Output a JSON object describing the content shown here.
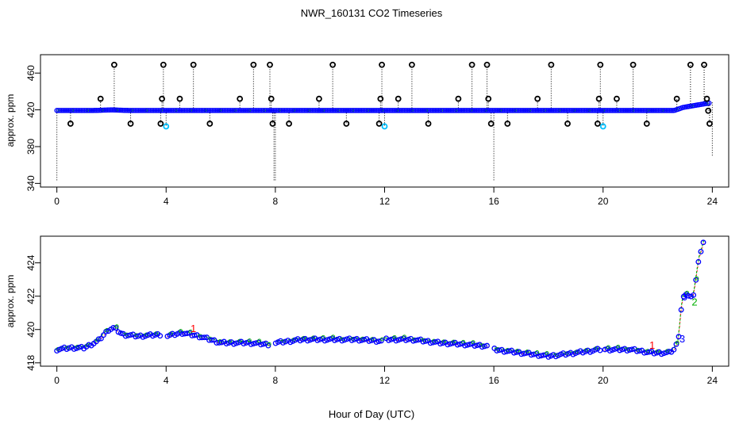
{
  "title": "NWR_160131  CO2 Timeseries",
  "xlabel": "Hour of Day (UTC)",
  "colors": {
    "circle": "#000000",
    "baseline": "#0000ff",
    "cyan": "#00bfff",
    "green": "#00b000",
    "red": "#ff0000",
    "drop": "#000000"
  },
  "chart_data": [
    {
      "type": "scatter",
      "title": "NWR_160131  CO2 Timeseries",
      "ylabel": "approx. ppm",
      "xlim": [
        -0.6,
        24.6
      ],
      "ylim": [
        336,
        480
      ],
      "xticks": [
        0,
        4,
        8,
        12,
        16,
        20,
        24
      ],
      "xtick_labels": [
        "0",
        "4",
        "8",
        "12",
        "16",
        "20",
        "24"
      ],
      "yticks": [
        340,
        380,
        420,
        460
      ],
      "ytick_labels": [
        "340",
        "380",
        "420",
        "460"
      ],
      "baseline_description": "near-continuous series at ~419 ppm, rising to ~426 ppm near hour 23.5",
      "spikes": [
        {
          "x": 0.5,
          "y": 405
        },
        {
          "x": 1.6,
          "y": 432
        },
        {
          "x": 2.1,
          "y": 469
        },
        {
          "x": 2.7,
          "y": 405
        },
        {
          "x": 3.8,
          "y": 405
        },
        {
          "x": 3.85,
          "y": 432
        },
        {
          "x": 3.9,
          "y": 469
        },
        {
          "x": 4.0,
          "y": 402
        },
        {
          "x": 4.5,
          "y": 432
        },
        {
          "x": 5.0,
          "y": 469
        },
        {
          "x": 5.6,
          "y": 405
        },
        {
          "x": 6.7,
          "y": 432
        },
        {
          "x": 7.2,
          "y": 469
        },
        {
          "x": 7.8,
          "y": 469
        },
        {
          "x": 7.85,
          "y": 432
        },
        {
          "x": 7.9,
          "y": 405
        },
        {
          "x": 8.5,
          "y": 405
        },
        {
          "x": 9.6,
          "y": 432
        },
        {
          "x": 10.1,
          "y": 469
        },
        {
          "x": 10.6,
          "y": 405
        },
        {
          "x": 11.8,
          "y": 405
        },
        {
          "x": 11.85,
          "y": 432
        },
        {
          "x": 11.9,
          "y": 469
        },
        {
          "x": 12.0,
          "y": 402
        },
        {
          "x": 12.5,
          "y": 432
        },
        {
          "x": 13.0,
          "y": 469
        },
        {
          "x": 13.6,
          "y": 405
        },
        {
          "x": 14.7,
          "y": 432
        },
        {
          "x": 15.2,
          "y": 469
        },
        {
          "x": 15.75,
          "y": 469
        },
        {
          "x": 15.8,
          "y": 432
        },
        {
          "x": 15.9,
          "y": 405
        },
        {
          "x": 16.5,
          "y": 405
        },
        {
          "x": 17.6,
          "y": 432
        },
        {
          "x": 18.1,
          "y": 469
        },
        {
          "x": 18.7,
          "y": 405
        },
        {
          "x": 19.8,
          "y": 405
        },
        {
          "x": 19.85,
          "y": 432
        },
        {
          "x": 19.9,
          "y": 469
        },
        {
          "x": 20.0,
          "y": 402
        },
        {
          "x": 20.5,
          "y": 432
        },
        {
          "x": 21.1,
          "y": 469
        },
        {
          "x": 21.6,
          "y": 405
        },
        {
          "x": 22.7,
          "y": 432
        },
        {
          "x": 23.2,
          "y": 469
        },
        {
          "x": 23.7,
          "y": 469
        },
        {
          "x": 23.8,
          "y": 432
        },
        {
          "x": 23.85,
          "y": 419
        },
        {
          "x": 23.9,
          "y": 405
        }
      ],
      "drop_lines": [
        {
          "x": 0.0,
          "y_to": 342
        },
        {
          "x": 7.95,
          "y_to": 342
        },
        {
          "x": 8.0,
          "y_to": 342
        },
        {
          "x": 16.0,
          "y_to": 342
        },
        {
          "x": 24.0,
          "y_to": 370
        }
      ]
    },
    {
      "type": "scatter",
      "ylabel": "approx. ppm",
      "xlim": [
        -0.6,
        24.6
      ],
      "ylim": [
        417.8,
        425.6
      ],
      "xticks": [
        0,
        4,
        8,
        12,
        16,
        20,
        24
      ],
      "xtick_labels": [
        "0",
        "4",
        "8",
        "12",
        "16",
        "20",
        "24"
      ],
      "yticks": [
        418,
        420,
        422,
        424
      ],
      "ytick_labels": [
        "418",
        "420",
        "422",
        "424"
      ],
      "series_description": "CO2 concentration ~418.5-420 ppm through the day with data gaps at hours 4, 8, 12, 16, 20; rapid rise after hour 22.6 to ~425.5 ppm",
      "gaps": [
        [
          3.8,
          4.0
        ],
        [
          7.8,
          8.0
        ],
        [
          11.9,
          12.0
        ],
        [
          15.8,
          16.0
        ],
        [
          19.9,
          20.0
        ]
      ],
      "anchors": [
        {
          "x": 0.0,
          "y": 418.8
        },
        {
          "x": 0.5,
          "y": 418.9
        },
        {
          "x": 1.0,
          "y": 418.9
        },
        {
          "x": 1.5,
          "y": 419.3
        },
        {
          "x": 1.9,
          "y": 420.0
        },
        {
          "x": 2.1,
          "y": 420.1
        },
        {
          "x": 2.4,
          "y": 419.7
        },
        {
          "x": 3.0,
          "y": 419.6
        },
        {
          "x": 3.8,
          "y": 419.7
        },
        {
          "x": 4.0,
          "y": 419.6
        },
        {
          "x": 4.6,
          "y": 419.8
        },
        {
          "x": 5.2,
          "y": 419.6
        },
        {
          "x": 6.0,
          "y": 419.2
        },
        {
          "x": 7.0,
          "y": 419.2
        },
        {
          "x": 7.8,
          "y": 419.1
        },
        {
          "x": 8.0,
          "y": 419.2
        },
        {
          "x": 9.0,
          "y": 419.4
        },
        {
          "x": 10.0,
          "y": 419.4
        },
        {
          "x": 11.0,
          "y": 419.4
        },
        {
          "x": 11.9,
          "y": 419.3
        },
        {
          "x": 12.0,
          "y": 419.4
        },
        {
          "x": 13.0,
          "y": 419.4
        },
        {
          "x": 14.0,
          "y": 419.2
        },
        {
          "x": 15.0,
          "y": 419.1
        },
        {
          "x": 15.8,
          "y": 419.0
        },
        {
          "x": 16.0,
          "y": 418.8
        },
        {
          "x": 17.0,
          "y": 418.6
        },
        {
          "x": 18.0,
          "y": 418.4
        },
        {
          "x": 19.0,
          "y": 418.6
        },
        {
          "x": 19.9,
          "y": 418.8
        },
        {
          "x": 20.0,
          "y": 418.8
        },
        {
          "x": 21.0,
          "y": 418.8
        },
        {
          "x": 21.8,
          "y": 418.6
        },
        {
          "x": 22.4,
          "y": 418.6
        },
        {
          "x": 22.6,
          "y": 418.8
        },
        {
          "x": 22.75,
          "y": 419.3
        },
        {
          "x": 22.9,
          "y": 421.9
        },
        {
          "x": 23.1,
          "y": 422.1
        },
        {
          "x": 23.3,
          "y": 421.9
        },
        {
          "x": 23.5,
          "y": 424.2
        },
        {
          "x": 23.75,
          "y": 425.6
        }
      ],
      "labels": [
        {
          "x": 5.0,
          "y": 420.0,
          "text": "1",
          "color": "red"
        },
        {
          "x": 21.8,
          "y": 419.0,
          "text": "1",
          "color": "red"
        },
        {
          "x": 22.9,
          "y": 419.4,
          "text": "3",
          "color": "blue"
        },
        {
          "x": 22.98,
          "y": 421.9,
          "text": "3",
          "color": "blue"
        },
        {
          "x": 23.35,
          "y": 421.6,
          "text": "2",
          "color": "green"
        }
      ]
    }
  ]
}
